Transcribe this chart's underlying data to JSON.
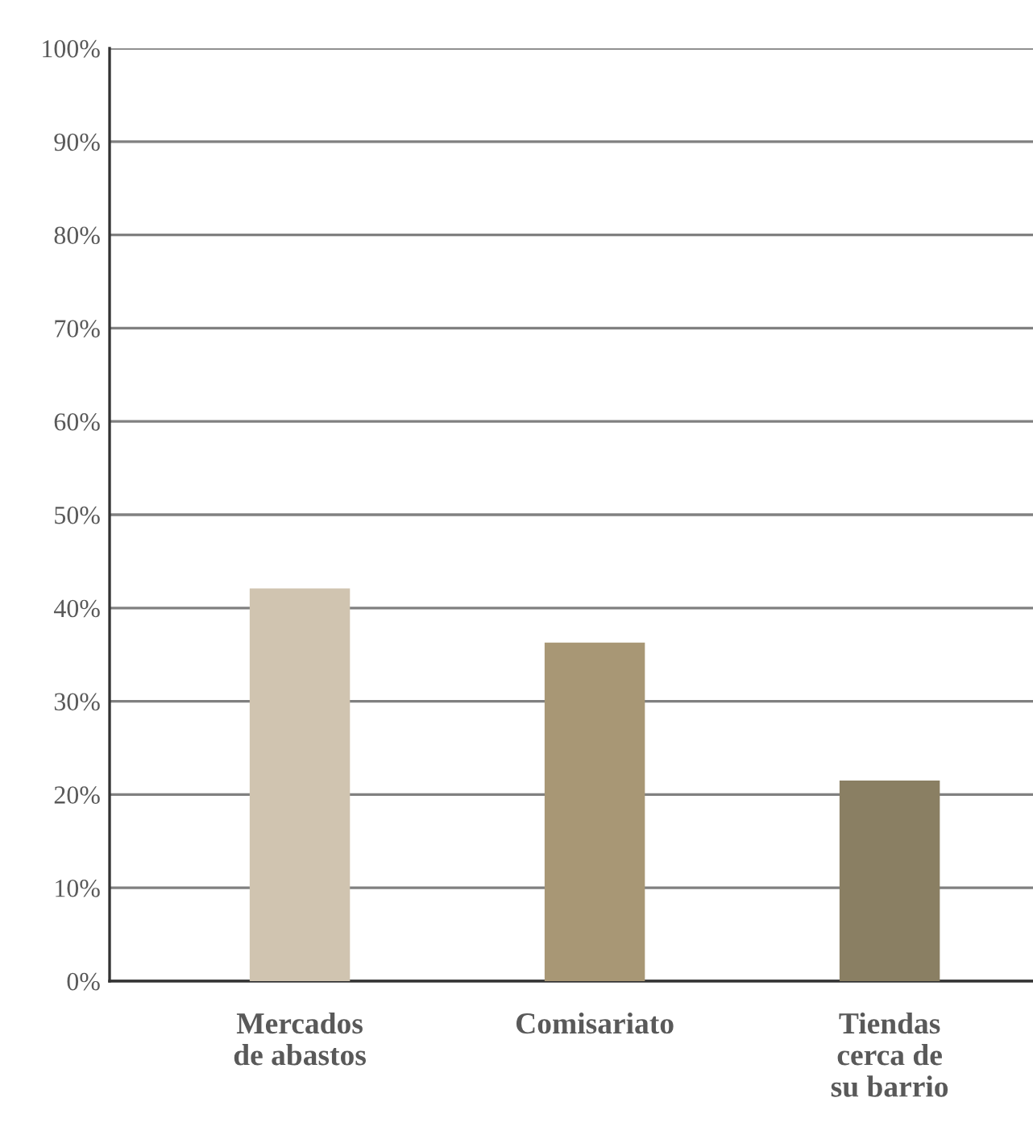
{
  "chart_data": {
    "type": "bar",
    "categories": [
      "Mercados\nde abastos",
      "Comisariato",
      "Tiendas\ncerca de\nsu barrio"
    ],
    "values": [
      42.1,
      36.3,
      21.5
    ],
    "colors": [
      "#d0c4b0",
      "#a89775",
      "#8a7f63"
    ],
    "ylim": [
      0,
      100
    ],
    "yticks": [
      {
        "value": 0,
        "label": "0%"
      },
      {
        "value": 10,
        "label": "10%"
      },
      {
        "value": 20,
        "label": "20%"
      },
      {
        "value": 30,
        "label": "30%"
      },
      {
        "value": 40,
        "label": "40%"
      },
      {
        "value": 50,
        "label": "50%"
      },
      {
        "value": 60,
        "label": "60%"
      },
      {
        "value": 70,
        "label": "70%"
      },
      {
        "value": 80,
        "label": "80%"
      },
      {
        "value": 90,
        "label": "90%"
      },
      {
        "value": 100,
        "label": "100%"
      }
    ],
    "grid": "y",
    "legend": false
  }
}
